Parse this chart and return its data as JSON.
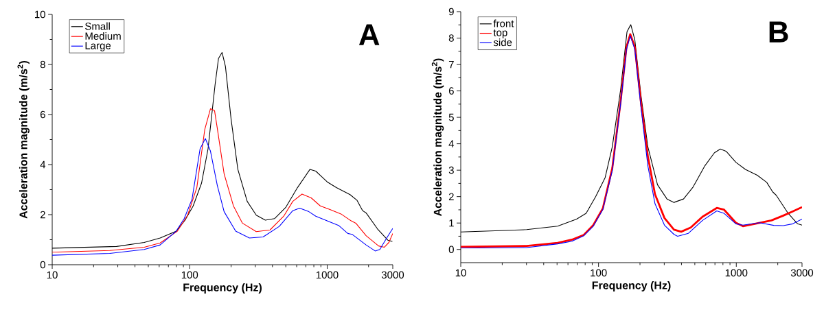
{
  "chart_data": [
    {
      "type": "line",
      "xlabel": "Frequency (Hz)",
      "ylabel": "Acceleration magnitude (m/s$^{2}$)",
      "annotations": [
        "A"
      ],
      "log": "x",
      "legend": "top left",
      "xlim": [
        10,
        3000
      ],
      "xticks": [
        10,
        100,
        1000,
        3000
      ],
      "ylim": [
        0,
        10
      ],
      "yticks": [
        0,
        2,
        4,
        6,
        8,
        10
      ],
      "series": [
        {
          "name": "Small",
          "color": "#000000",
          "x": [
            10,
            29.4,
            46.7,
            61,
            79.8,
            93,
            106,
            122,
            136,
            153,
            162,
            172,
            182,
            200,
            224,
            262,
            305,
            355,
            414,
            501,
            608,
            750,
            826,
            1000,
            1167,
            1466,
            1645,
            1811,
            1919,
            2323,
            2761,
            2980
          ],
          "values": [
            0.66,
            0.73,
            0.89,
            1.07,
            1.34,
            1.8,
            2.35,
            3.26,
            4.63,
            7.19,
            8.24,
            8.48,
            7.92,
            5.82,
            3.81,
            2.53,
            1.98,
            1.78,
            1.84,
            2.3,
            3.08,
            3.81,
            3.74,
            3.31,
            3.08,
            2.8,
            2.58,
            2.16,
            2.07,
            1.43,
            0.98,
            0.93
          ]
        },
        {
          "name": "Medium",
          "color": "#ff0000",
          "x": [
            10,
            26.2,
            46.7,
            61,
            81.4,
            96.6,
            112.7,
            128.8,
            141.6,
            151.6,
            158.8,
            178,
            208,
            242,
            305,
            384,
            483,
            562,
            656,
            765,
            891,
            1040,
            1259,
            1496,
            1616,
            1919,
            2366,
            2606,
            2812,
            3000
          ],
          "values": [
            0.5,
            0.57,
            0.7,
            0.87,
            1.34,
            1.98,
            3.08,
            5.41,
            6.23,
            6.16,
            5.45,
            3.63,
            2.35,
            1.66,
            1.32,
            1.39,
            1.94,
            2.53,
            2.82,
            2.67,
            2.35,
            2.21,
            2.03,
            1.75,
            1.66,
            1.16,
            0.75,
            0.7,
            0.89,
            1.25
          ]
        },
        {
          "name": "Large",
          "color": "#0000ff",
          "x": [
            10,
            26.2,
            46.7,
            61,
            79.8,
            91.2,
            104,
            119,
            130,
            141.6,
            158.8,
            178,
            216,
            272,
            342,
            448,
            562,
            631,
            736,
            826,
            1000,
            1211,
            1412,
            1524,
            1919,
            2234,
            2415,
            2710,
            3000
          ],
          "values": [
            0.38,
            0.45,
            0.61,
            0.79,
            1.34,
            1.84,
            2.62,
            4.63,
            5.04,
            4.54,
            3.17,
            2.12,
            1.34,
            1.07,
            1.11,
            1.53,
            2.16,
            2.26,
            2.12,
            1.94,
            1.75,
            1.57,
            1.25,
            1.21,
            0.79,
            0.55,
            0.61,
            1.07,
            1.45
          ]
        }
      ]
    },
    {
      "type": "line",
      "xlabel": "Frequency (Hz)",
      "ylabel": "Acceleration magnitude (m/s$^{2}$)",
      "annotations": [
        "B"
      ],
      "log": "x",
      "legend": "top left",
      "xlim": [
        10,
        3000
      ],
      "xticks": [
        10,
        100,
        1000,
        3000
      ],
      "ylim": [
        -0.5,
        9
      ],
      "yticks": [
        0,
        1,
        2,
        3,
        4,
        5,
        6,
        7,
        8,
        9
      ],
      "series": [
        {
          "name": "front",
          "color": "#000000",
          "x": [
            10,
            30.1,
            50.5,
            69.3,
            81.3,
            95.3,
            111.7,
            125.9,
            144.6,
            161,
            171.5,
            183.5,
            203,
            228,
            268,
            314,
            353,
            414,
            485,
            592,
            694,
            766,
            847,
            993,
            1164,
            1419,
            1663,
            1837,
            1950,
            2377,
            2786,
            3000
          ],
          "values": [
            0.66,
            0.75,
            0.88,
            1.15,
            1.37,
            2.0,
            2.72,
            3.89,
            6.04,
            8.24,
            8.51,
            7.93,
            5.86,
            3.89,
            2.45,
            1.91,
            1.78,
            1.91,
            2.36,
            3.17,
            3.66,
            3.8,
            3.71,
            3.3,
            3.03,
            2.81,
            2.54,
            2.18,
            2.05,
            1.37,
            0.97,
            0.92
          ]
        },
        {
          "name": "top",
          "color": "#ff0000",
          "x": [
            10,
            30.1,
            50.5,
            64.1,
            78.2,
            91.6,
            107.4,
            125.9,
            144.6,
            159.6,
            170,
            183.5,
            203,
            228,
            257,
            301,
            353,
            398,
            467,
            569,
            722,
            813,
            993,
            1117,
            1362,
            1799,
            2193,
            2570,
            3000
          ],
          "values": [
            0.1,
            0.13,
            0.25,
            0.37,
            0.55,
            0.92,
            1.55,
            3.08,
            5.59,
            7.66,
            8.15,
            7.66,
            5.59,
            3.53,
            2.09,
            1.19,
            0.75,
            0.67,
            0.83,
            1.24,
            1.57,
            1.51,
            1.01,
            0.88,
            0.97,
            1.1,
            1.28,
            1.44,
            1.6
          ]
        },
        {
          "name": "side",
          "color": "#0000ff",
          "x": [
            10,
            30.1,
            50.5,
            64.1,
            78.2,
            91.6,
            107.4,
            125.9,
            144.6,
            159.6,
            170,
            183.5,
            203,
            228,
            257,
            301,
            353,
            375,
            449,
            569,
            722,
            813,
            993,
            1117,
            1476,
            1871,
            2193,
            2570,
            3000
          ],
          "values": [
            0.05,
            0.07,
            0.21,
            0.31,
            0.52,
            0.88,
            1.51,
            2.99,
            5.5,
            7.57,
            8.09,
            7.57,
            5.41,
            3.17,
            1.73,
            0.92,
            0.57,
            0.5,
            0.61,
            1.1,
            1.46,
            1.37,
            0.97,
            0.92,
            1.01,
            0.91,
            0.9,
            0.97,
            1.15
          ]
        }
      ]
    }
  ]
}
